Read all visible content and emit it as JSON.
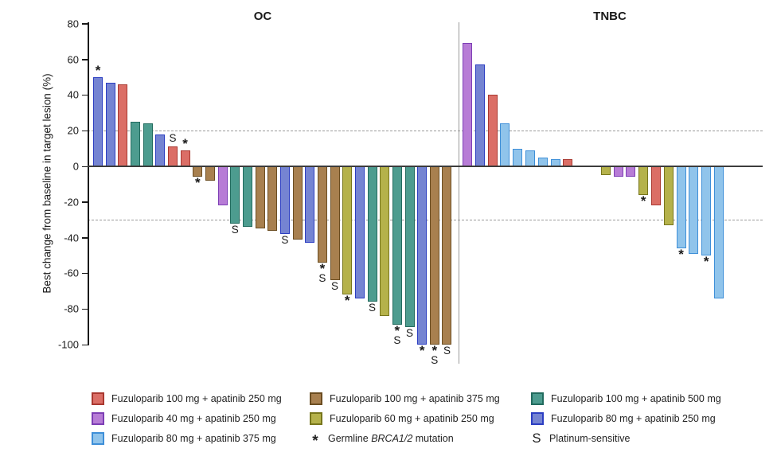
{
  "chart_data": {
    "type": "bar",
    "subtype": "waterfall",
    "ylabel": "Best change from baseline in target lesion (%)",
    "ylim": [
      -100,
      80
    ],
    "yticks": [
      80,
      60,
      40,
      20,
      0,
      -20,
      -40,
      -60,
      -80,
      -100
    ],
    "reference_lines": [
      20,
      -30
    ],
    "grid": "dashed-reference-only",
    "annotation_symbols": {
      "asterisk": "*",
      "platinum": "S"
    },
    "colors": {
      "red": {
        "fill": "#DB6E66",
        "stroke": "#A93830"
      },
      "brown": {
        "fill": "#A8804F",
        "stroke": "#6B4D21"
      },
      "teal": {
        "fill": "#4D9C8F",
        "stroke": "#226B5E"
      },
      "purple": {
        "fill": "#B77CD6",
        "stroke": "#7D3EB5"
      },
      "olive": {
        "fill": "#B5B24B",
        "stroke": "#77761C"
      },
      "periwinkle": {
        "fill": "#7584D2",
        "stroke": "#2C3EC2"
      },
      "lightblue": {
        "fill": "#90C4EB",
        "stroke": "#3E8FD8"
      }
    },
    "groups": [
      {
        "label": "OC",
        "bars": [
          {
            "v": 50,
            "c": "periwinkle",
            "ann": [
              "*"
            ]
          },
          {
            "v": 47,
            "c": "periwinkle"
          },
          {
            "v": 46,
            "c": "red"
          },
          {
            "v": 25,
            "c": "teal"
          },
          {
            "v": 24,
            "c": "teal"
          },
          {
            "v": 18,
            "c": "periwinkle"
          },
          {
            "v": 11,
            "c": "red",
            "ann": [
              "S"
            ]
          },
          {
            "v": 9,
            "c": "red",
            "ann": [
              "*"
            ]
          },
          {
            "v": -6,
            "c": "brown",
            "ann": [
              "*"
            ]
          },
          {
            "v": -8,
            "c": "brown"
          },
          {
            "v": -22,
            "c": "purple"
          },
          {
            "v": -32,
            "c": "teal",
            "ann": [
              "S"
            ]
          },
          {
            "v": -34,
            "c": "teal"
          },
          {
            "v": -35,
            "c": "brown"
          },
          {
            "v": -36,
            "c": "brown"
          },
          {
            "v": -38,
            "c": "periwinkle",
            "ann": [
              "S"
            ]
          },
          {
            "v": -41,
            "c": "brown"
          },
          {
            "v": -43,
            "c": "periwinkle"
          },
          {
            "v": -54,
            "c": "brown",
            "ann": [
              "*",
              "S"
            ]
          },
          {
            "v": -64,
            "c": "brown",
            "ann": [
              "S"
            ]
          },
          {
            "v": -72,
            "c": "olive",
            "ann": [
              "*"
            ]
          },
          {
            "v": -74,
            "c": "periwinkle"
          },
          {
            "v": -76,
            "c": "teal",
            "ann": [
              "S"
            ]
          },
          {
            "v": -84,
            "c": "olive"
          },
          {
            "v": -89,
            "c": "teal",
            "ann": [
              "*",
              "S"
            ]
          },
          {
            "v": -90,
            "c": "teal",
            "ann": [
              "S"
            ]
          },
          {
            "v": -100,
            "c": "periwinkle",
            "ann": [
              "*"
            ]
          },
          {
            "v": -100,
            "c": "brown",
            "ann": [
              "*",
              "S"
            ]
          },
          {
            "v": -100,
            "c": "brown",
            "ann": [
              "S"
            ]
          }
        ]
      },
      {
        "label": "TNBC",
        "bars": [
          {
            "v": 69,
            "c": "purple"
          },
          {
            "v": 57,
            "c": "periwinkle"
          },
          {
            "v": 40,
            "c": "red"
          },
          {
            "v": 24,
            "c": "lightblue"
          },
          {
            "v": 10,
            "c": "lightblue"
          },
          {
            "v": 9,
            "c": "lightblue"
          },
          {
            "v": 5,
            "c": "lightblue"
          },
          {
            "v": 4,
            "c": "lightblue"
          },
          {
            "v": 4,
            "c": "red"
          },
          {
            "v": 0
          },
          {
            "v": 0
          },
          {
            "v": -5,
            "c": "olive"
          },
          {
            "v": -6,
            "c": "purple"
          },
          {
            "v": -6,
            "c": "purple"
          },
          {
            "v": -16,
            "c": "olive",
            "ann": [
              "*"
            ]
          },
          {
            "v": -22,
            "c": "red"
          },
          {
            "v": -33,
            "c": "olive"
          },
          {
            "v": -46,
            "c": "lightblue",
            "ann": [
              "*"
            ]
          },
          {
            "v": -49,
            "c": "lightblue"
          },
          {
            "v": -50,
            "c": "lightblue",
            "ann": [
              "*"
            ]
          },
          {
            "v": -74,
            "c": "lightblue"
          }
        ]
      }
    ],
    "legend": {
      "columns": [
        [
          {
            "swatch": "red",
            "label": "Fuzuloparib 100 mg + apatinib 250 mg"
          },
          {
            "swatch": "purple",
            "label": "Fuzuloparib 40 mg + apatinib 250 mg"
          },
          {
            "swatch": "lightblue",
            "label": "Fuzuloparib 80 mg + apatinib 375 mg"
          }
        ],
        [
          {
            "swatch": "brown",
            "label": "Fuzuloparib 100 mg + apatinib 375 mg"
          },
          {
            "swatch": "olive",
            "label": "Fuzuloparib 60 mg + apatinib 250 mg"
          },
          {
            "symbol": "*",
            "prefix": "Germline ",
            "italic": "BRCA1/2",
            "suffix": " mutation"
          }
        ],
        [
          {
            "swatch": "teal",
            "label": "Fuzuloparib 100 mg + apatinib 500 mg"
          },
          {
            "swatch": "periwinkle",
            "label": "Fuzuloparib 80 mg + apatinib 250 mg"
          },
          {
            "symbol": "S",
            "label": "Platinum-sensitive"
          }
        ]
      ]
    }
  }
}
